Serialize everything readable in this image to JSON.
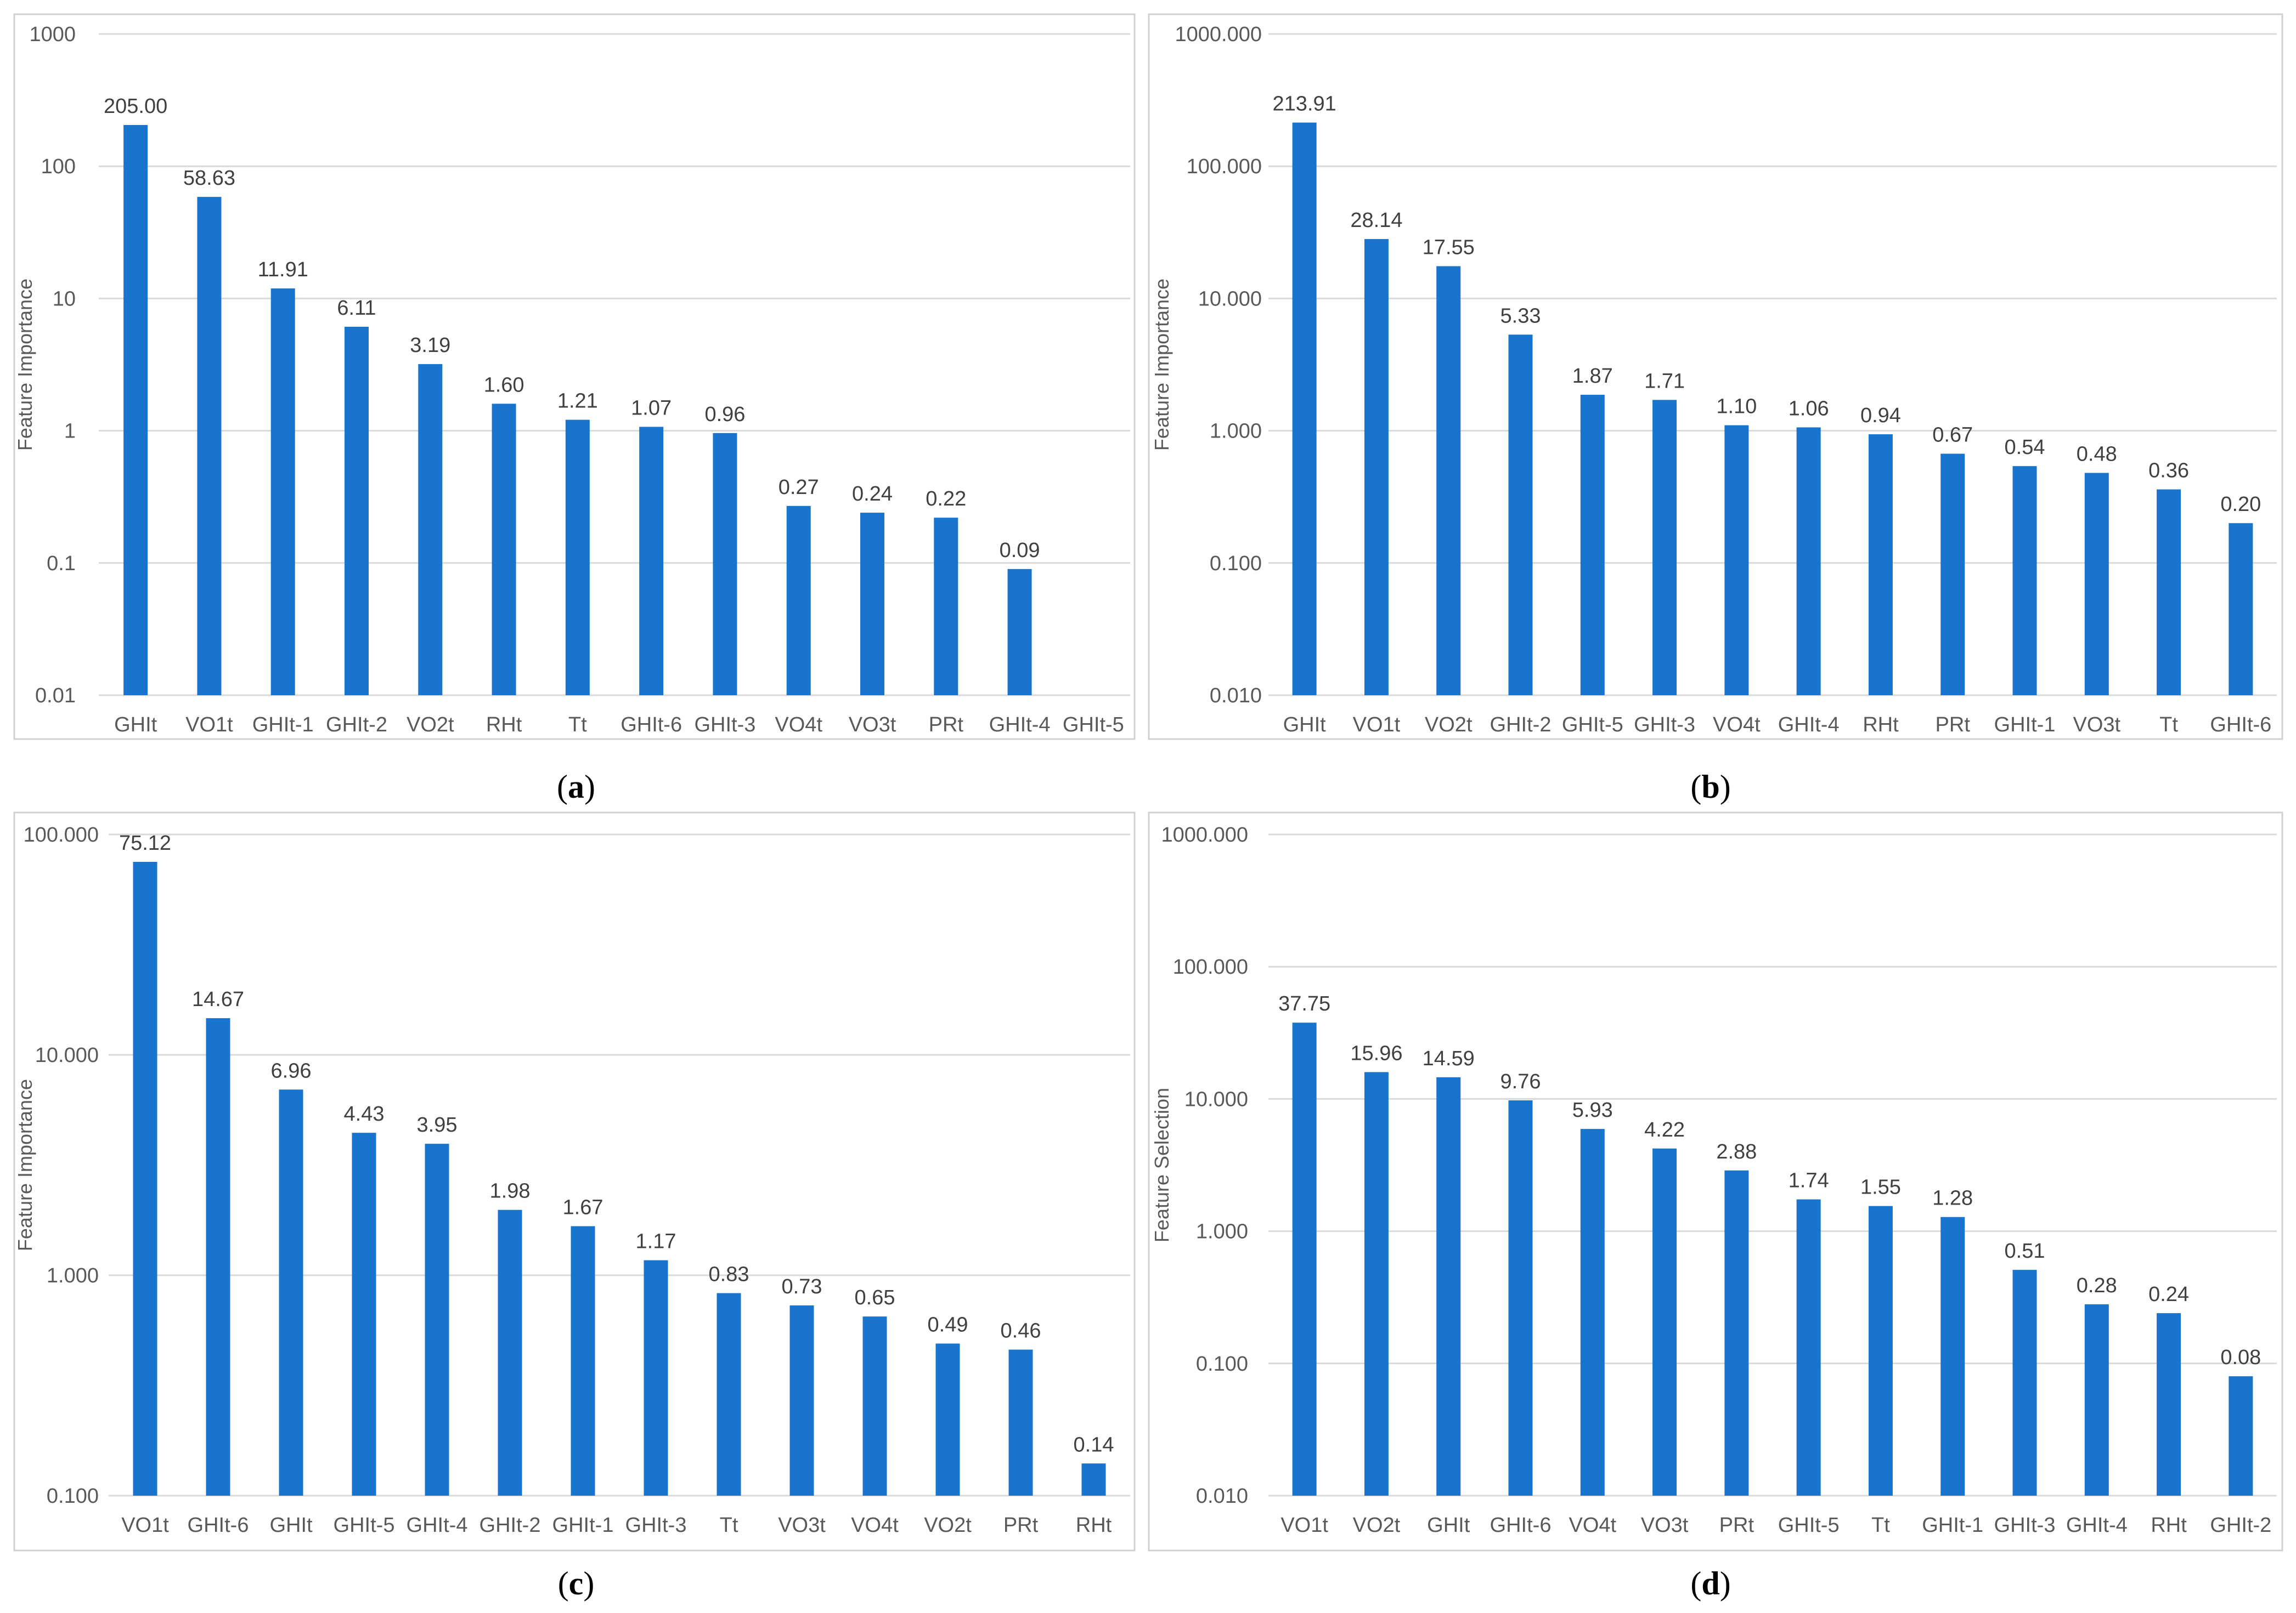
{
  "chart_data": [
    {
      "type": "bar",
      "panel": "a",
      "caption": "(a)",
      "caption_letter": "a",
      "ylabel": "Feature Importance",
      "yscale": "log",
      "ylim": [
        0.01,
        1000
      ],
      "yticks": [
        "0.01",
        "0.1",
        "1",
        "10",
        "100",
        "1000"
      ],
      "categories": [
        "GHIt",
        "VO1t",
        "GHIt-1",
        "GHIt-2",
        "VO2t",
        "RHt",
        "Tt",
        "GHIt-6",
        "GHIt-3",
        "VO4t",
        "VO3t",
        "PRt",
        "GHIt-4",
        "GHIt-5"
      ],
      "values": [
        205.0,
        58.63,
        11.91,
        6.11,
        3.19,
        1.6,
        1.21,
        1.07,
        0.96,
        0.27,
        0.24,
        0.22,
        0.09,
        null
      ],
      "labels": [
        "205.00",
        "58.63",
        "11.91",
        "6.11",
        "3.19",
        "1.60",
        "1.21",
        "1.07",
        "0.96",
        "0.27",
        "0.24",
        "0.22",
        "0.09",
        ""
      ],
      "grid": true,
      "legend": "none"
    },
    {
      "type": "bar",
      "panel": "b",
      "caption": "(b)",
      "caption_letter": "b",
      "ylabel": "Feature Importance",
      "yscale": "log",
      "ylim": [
        0.01,
        1000
      ],
      "yticks": [
        "0.010",
        "0.100",
        "1.000",
        "10.000",
        "100.000",
        "1000.000"
      ],
      "categories": [
        "GHIt",
        "VO1t",
        "VO2t",
        "GHIt-2",
        "GHIt-5",
        "GHIt-3",
        "VO4t",
        "GHIt-4",
        "RHt",
        "PRt",
        "GHIt-1",
        "VO3t",
        "Tt",
        "GHIt-6"
      ],
      "values": [
        213.91,
        28.14,
        17.55,
        5.33,
        1.87,
        1.71,
        1.1,
        1.06,
        0.94,
        0.67,
        0.54,
        0.48,
        0.36,
        0.2
      ],
      "labels": [
        "213.91",
        "28.14",
        "17.55",
        "5.33",
        "1.87",
        "1.71",
        "1.10",
        "1.06",
        "0.94",
        "0.67",
        "0.54",
        "0.48",
        "0.36",
        "0.20"
      ],
      "grid": true,
      "legend": "none"
    },
    {
      "type": "bar",
      "panel": "c",
      "caption": "(c)",
      "caption_letter": "c",
      "ylabel": "Feature Importance",
      "yscale": "log",
      "ylim": [
        0.1,
        100
      ],
      "yticks": [
        "0.100",
        "1.000",
        "10.000",
        "100.000"
      ],
      "categories": [
        "VO1t",
        "GHIt-6",
        "GHIt",
        "GHIt-5",
        "GHIt-4",
        "GHIt-2",
        "GHIt-1",
        "GHIt-3",
        "Tt",
        "VO3t",
        "VO4t",
        "VO2t",
        "PRt",
        "RHt"
      ],
      "values": [
        75.12,
        14.67,
        6.96,
        4.43,
        3.95,
        1.98,
        1.67,
        1.17,
        0.83,
        0.73,
        0.65,
        0.49,
        0.46,
        0.14
      ],
      "labels": [
        "75.12",
        "14.67",
        "6.96",
        "4.43",
        "3.95",
        "1.98",
        "1.67",
        "1.17",
        "0.83",
        "0.73",
        "0.65",
        "0.49",
        "0.46",
        "0.14"
      ],
      "grid": true,
      "legend": "none"
    },
    {
      "type": "bar",
      "panel": "d",
      "caption": "(d)",
      "caption_letter": "d",
      "ylabel": "Feature Selection",
      "yscale": "log",
      "ylim": [
        0.01,
        1000
      ],
      "yticks": [
        "0.010",
        "0.100",
        "1.000",
        "10.000",
        "100.000",
        "1000.000"
      ],
      "categories": [
        "VO1t",
        "VO2t",
        "GHIt",
        "GHIt-6",
        "VO4t",
        "VO3t",
        "PRt",
        "GHIt-5",
        "Tt",
        "GHIt-1",
        "GHIt-3",
        "GHIt-4",
        "RHt",
        "GHIt-2"
      ],
      "values": [
        37.75,
        15.96,
        14.59,
        9.76,
        5.93,
        4.22,
        2.88,
        1.74,
        1.55,
        1.28,
        0.51,
        0.28,
        0.24,
        0.08
      ],
      "labels": [
        "37.75",
        "15.96",
        "14.59",
        "9.76",
        "5.93",
        "4.22",
        "2.88",
        "1.74",
        "1.55",
        "1.28",
        "0.51",
        "0.28",
        "0.24",
        "0.08"
      ],
      "grid": true,
      "legend": "none"
    }
  ],
  "colors": {
    "bar": "#1874cd",
    "grid": "#d9d9d9",
    "frame": "#d0d0d0"
  }
}
